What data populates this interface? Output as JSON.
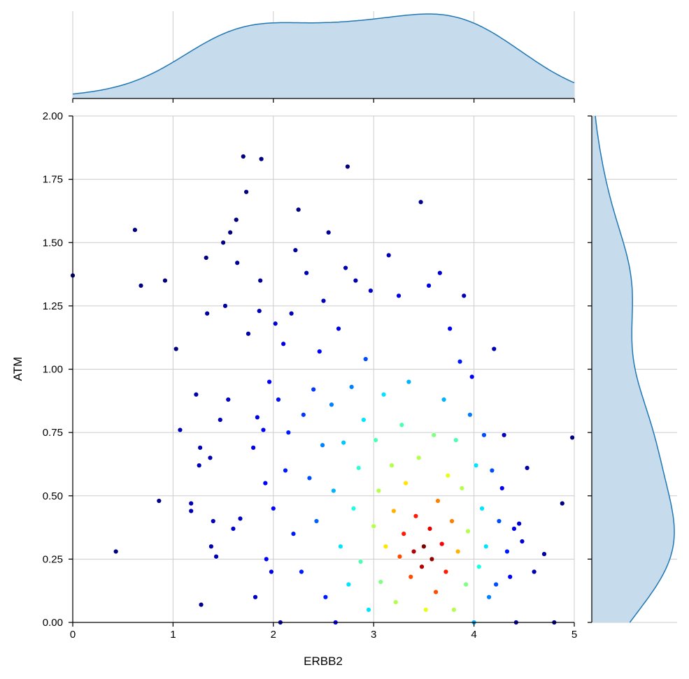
{
  "chart_data": {
    "type": "scatter",
    "xlabel": "ERBB2",
    "ylabel": "ATM",
    "xlim": [
      0,
      5
    ],
    "ylim": [
      0,
      2
    ],
    "x_ticks": [
      "0",
      "1",
      "2",
      "3",
      "4",
      "5"
    ],
    "y_ticks": [
      "0.00",
      "0.25",
      "0.50",
      "0.75",
      "1.00",
      "1.25",
      "1.50",
      "1.75",
      "2.00"
    ],
    "grid": true,
    "colormap": "jet",
    "colormap_meaning": "point density",
    "colors": {
      "grid": "#cccccc",
      "axis": "#000000",
      "kde_line": "#1f77b4",
      "kde_fill": "#c6dbeb",
      "point_edge": "#ffffff"
    },
    "points": [
      [
        0.0,
        1.37,
        0.0
      ],
      [
        0.62,
        1.55,
        0.0
      ],
      [
        0.68,
        1.33,
        0.0
      ],
      [
        0.92,
        1.35,
        0.0
      ],
      [
        0.43,
        0.28,
        0.0
      ],
      [
        0.86,
        0.48,
        0.0
      ],
      [
        1.03,
        1.08,
        0.0
      ],
      [
        1.07,
        0.76,
        0.05
      ],
      [
        1.18,
        0.47,
        0.05
      ],
      [
        1.18,
        0.44,
        0.05
      ],
      [
        1.23,
        0.9,
        0.05
      ],
      [
        1.26,
        0.62,
        0.05
      ],
      [
        1.27,
        0.69,
        0.05
      ],
      [
        1.28,
        0.07,
        0.02
      ],
      [
        1.33,
        1.44,
        0.0
      ],
      [
        1.34,
        1.22,
        0.03
      ],
      [
        1.37,
        0.65,
        0.05
      ],
      [
        1.38,
        0.3,
        0.05
      ],
      [
        1.4,
        0.4,
        0.06
      ],
      [
        1.43,
        0.26,
        0.05
      ],
      [
        1.47,
        0.8,
        0.05
      ],
      [
        1.5,
        1.5,
        0.0
      ],
      [
        1.52,
        1.25,
        0.04
      ],
      [
        1.55,
        0.88,
        0.07
      ],
      [
        1.57,
        1.54,
        0.0
      ],
      [
        1.6,
        0.37,
        0.08
      ],
      [
        1.63,
        1.59,
        0.0
      ],
      [
        1.64,
        1.42,
        0.02
      ],
      [
        1.67,
        0.41,
        0.07
      ],
      [
        1.7,
        1.84,
        0.0
      ],
      [
        1.73,
        1.7,
        0.0
      ],
      [
        1.75,
        1.14,
        0.04
      ],
      [
        1.8,
        0.69,
        0.1
      ],
      [
        1.82,
        0.1,
        0.06
      ],
      [
        1.84,
        0.81,
        0.1
      ],
      [
        1.86,
        1.23,
        0.05
      ],
      [
        1.87,
        1.35,
        0.03
      ],
      [
        1.88,
        1.83,
        0.0
      ],
      [
        1.9,
        0.76,
        0.12
      ],
      [
        1.92,
        0.55,
        0.12
      ],
      [
        1.93,
        0.25,
        0.12
      ],
      [
        1.96,
        0.95,
        0.12
      ],
      [
        1.98,
        0.2,
        0.1
      ],
      [
        2.0,
        0.45,
        0.13
      ],
      [
        2.02,
        1.18,
        0.08
      ],
      [
        2.05,
        0.88,
        0.14
      ],
      [
        2.07,
        0.0,
        0.05
      ],
      [
        2.1,
        1.1,
        0.1
      ],
      [
        2.12,
        0.6,
        0.15
      ],
      [
        2.15,
        0.75,
        0.15
      ],
      [
        2.18,
        1.22,
        0.06
      ],
      [
        2.2,
        0.35,
        0.15
      ],
      [
        2.22,
        1.47,
        0.03
      ],
      [
        2.25,
        1.63,
        0.0
      ],
      [
        2.28,
        0.2,
        0.15
      ],
      [
        2.3,
        0.82,
        0.18
      ],
      [
        2.33,
        1.38,
        0.05
      ],
      [
        2.36,
        0.57,
        0.2
      ],
      [
        2.4,
        0.92,
        0.18
      ],
      [
        2.43,
        0.4,
        0.22
      ],
      [
        2.46,
        1.07,
        0.12
      ],
      [
        2.49,
        0.7,
        0.25
      ],
      [
        2.5,
        1.27,
        0.06
      ],
      [
        2.52,
        0.1,
        0.15
      ],
      [
        2.55,
        1.54,
        0.02
      ],
      [
        2.58,
        0.86,
        0.25
      ],
      [
        2.6,
        0.52,
        0.3
      ],
      [
        2.62,
        0.0,
        0.12
      ],
      [
        2.65,
        1.16,
        0.1
      ],
      [
        2.67,
        0.3,
        0.35
      ],
      [
        2.7,
        0.71,
        0.32
      ],
      [
        2.72,
        1.4,
        0.05
      ],
      [
        2.74,
        1.8,
        0.0
      ],
      [
        2.75,
        0.15,
        0.35
      ],
      [
        2.78,
        0.93,
        0.25
      ],
      [
        2.8,
        0.45,
        0.4
      ],
      [
        2.82,
        1.35,
        0.05
      ],
      [
        2.85,
        0.61,
        0.42
      ],
      [
        2.87,
        0.24,
        0.45
      ],
      [
        2.9,
        0.8,
        0.35
      ],
      [
        2.92,
        1.04,
        0.2
      ],
      [
        2.95,
        0.05,
        0.35
      ],
      [
        2.97,
        1.31,
        0.08
      ],
      [
        3.0,
        0.38,
        0.55
      ],
      [
        3.02,
        0.72,
        0.45
      ],
      [
        3.05,
        0.52,
        0.55
      ],
      [
        3.07,
        0.16,
        0.5
      ],
      [
        3.1,
        0.9,
        0.35
      ],
      [
        3.12,
        0.3,
        0.65
      ],
      [
        3.15,
        1.45,
        0.05
      ],
      [
        3.18,
        0.62,
        0.55
      ],
      [
        3.2,
        0.44,
        0.7
      ],
      [
        3.22,
        0.08,
        0.55
      ],
      [
        3.25,
        1.29,
        0.1
      ],
      [
        3.26,
        0.26,
        0.8
      ],
      [
        3.28,
        0.78,
        0.45
      ],
      [
        3.3,
        0.35,
        0.85
      ],
      [
        3.32,
        0.55,
        0.65
      ],
      [
        3.35,
        0.95,
        0.3
      ],
      [
        3.37,
        0.18,
        0.8
      ],
      [
        3.4,
        0.28,
        0.95
      ],
      [
        3.42,
        0.42,
        0.85
      ],
      [
        3.45,
        0.65,
        0.55
      ],
      [
        3.47,
        1.66,
        0.02
      ],
      [
        3.48,
        0.22,
        0.95
      ],
      [
        3.5,
        0.3,
        1.0
      ],
      [
        3.52,
        0.05,
        0.6
      ],
      [
        3.55,
        1.33,
        0.1
      ],
      [
        3.56,
        0.37,
        0.9
      ],
      [
        3.58,
        0.25,
        0.98
      ],
      [
        3.6,
        0.74,
        0.5
      ],
      [
        3.62,
        0.12,
        0.8
      ],
      [
        3.64,
        0.48,
        0.75
      ],
      [
        3.66,
        1.38,
        0.08
      ],
      [
        3.68,
        0.31,
        0.88
      ],
      [
        3.7,
        0.88,
        0.3
      ],
      [
        3.72,
        0.2,
        0.85
      ],
      [
        3.74,
        0.58,
        0.6
      ],
      [
        3.76,
        1.16,
        0.12
      ],
      [
        3.78,
        0.4,
        0.75
      ],
      [
        3.8,
        0.05,
        0.55
      ],
      [
        3.82,
        0.72,
        0.45
      ],
      [
        3.84,
        0.28,
        0.7
      ],
      [
        3.86,
        1.03,
        0.15
      ],
      [
        3.88,
        0.53,
        0.55
      ],
      [
        3.9,
        1.29,
        0.06
      ],
      [
        3.92,
        0.15,
        0.5
      ],
      [
        3.94,
        0.36,
        0.55
      ],
      [
        3.96,
        0.82,
        0.25
      ],
      [
        3.98,
        0.97,
        0.12
      ],
      [
        4.0,
        0.0,
        0.3
      ],
      [
        4.02,
        0.62,
        0.35
      ],
      [
        4.05,
        0.22,
        0.4
      ],
      [
        4.08,
        0.45,
        0.35
      ],
      [
        4.1,
        0.74,
        0.2
      ],
      [
        4.12,
        0.3,
        0.35
      ],
      [
        4.15,
        0.1,
        0.25
      ],
      [
        4.18,
        0.6,
        0.2
      ],
      [
        4.2,
        1.08,
        0.05
      ],
      [
        4.22,
        0.15,
        0.2
      ],
      [
        4.25,
        0.4,
        0.2
      ],
      [
        4.28,
        0.53,
        0.12
      ],
      [
        4.3,
        0.74,
        0.06
      ],
      [
        4.33,
        0.28,
        0.15
      ],
      [
        4.36,
        0.18,
        0.12
      ],
      [
        4.4,
        0.37,
        0.1
      ],
      [
        4.42,
        0.0,
        0.05
      ],
      [
        4.45,
        0.39,
        0.08
      ],
      [
        4.48,
        0.32,
        0.08
      ],
      [
        4.53,
        0.61,
        0.04
      ],
      [
        4.6,
        0.2,
        0.05
      ],
      [
        4.7,
        0.27,
        0.03
      ],
      [
        4.8,
        0.0,
        0.02
      ],
      [
        4.88,
        0.47,
        0.0
      ],
      [
        4.98,
        0.73,
        0.0
      ]
    ]
  }
}
